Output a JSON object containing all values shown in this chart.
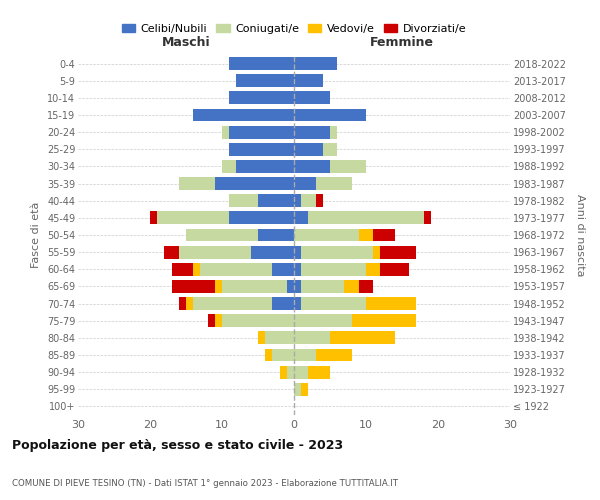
{
  "age_groups": [
    "100+",
    "95-99",
    "90-94",
    "85-89",
    "80-84",
    "75-79",
    "70-74",
    "65-69",
    "60-64",
    "55-59",
    "50-54",
    "45-49",
    "40-44",
    "35-39",
    "30-34",
    "25-29",
    "20-24",
    "15-19",
    "10-14",
    "5-9",
    "0-4"
  ],
  "birth_years": [
    "≤ 1922",
    "1923-1927",
    "1928-1932",
    "1933-1937",
    "1938-1942",
    "1943-1947",
    "1948-1952",
    "1953-1957",
    "1958-1962",
    "1963-1967",
    "1968-1972",
    "1973-1977",
    "1978-1982",
    "1983-1987",
    "1988-1992",
    "1993-1997",
    "1998-2002",
    "2003-2007",
    "2008-2012",
    "2013-2017",
    "2018-2022"
  ],
  "males": {
    "celibi": [
      0,
      0,
      0,
      0,
      0,
      0,
      3,
      1,
      3,
      6,
      5,
      9,
      5,
      11,
      8,
      9,
      9,
      14,
      9,
      8,
      9
    ],
    "coniugati": [
      0,
      0,
      1,
      3,
      4,
      10,
      11,
      9,
      10,
      10,
      10,
      10,
      4,
      5,
      2,
      0,
      1,
      0,
      0,
      0,
      0
    ],
    "vedovi": [
      0,
      0,
      1,
      1,
      1,
      1,
      1,
      1,
      1,
      0,
      0,
      0,
      0,
      0,
      0,
      0,
      0,
      0,
      0,
      0,
      0
    ],
    "divorziati": [
      0,
      0,
      0,
      0,
      0,
      1,
      1,
      6,
      3,
      2,
      0,
      1,
      0,
      0,
      0,
      0,
      0,
      0,
      0,
      0,
      0
    ]
  },
  "females": {
    "nubili": [
      0,
      0,
      0,
      0,
      0,
      0,
      1,
      1,
      1,
      1,
      0,
      2,
      1,
      3,
      5,
      4,
      5,
      10,
      5,
      4,
      6
    ],
    "coniugate": [
      0,
      1,
      2,
      3,
      5,
      8,
      9,
      6,
      9,
      10,
      9,
      16,
      2,
      5,
      5,
      2,
      1,
      0,
      0,
      0,
      0
    ],
    "vedove": [
      0,
      1,
      3,
      5,
      9,
      9,
      7,
      2,
      2,
      1,
      2,
      0,
      0,
      0,
      0,
      0,
      0,
      0,
      0,
      0,
      0
    ],
    "divorziate": [
      0,
      0,
      0,
      0,
      0,
      0,
      0,
      2,
      4,
      5,
      3,
      1,
      1,
      0,
      0,
      0,
      0,
      0,
      0,
      0,
      0
    ]
  },
  "colors": {
    "celibi": "#4472c4",
    "coniugati": "#c5d9a0",
    "vedovi": "#ffc000",
    "divorziati": "#cc0000"
  },
  "xlim": 30,
  "title": "Popolazione per età, sesso e stato civile - 2023",
  "subtitle": "COMUNE DI PIEVE TESINO (TN) - Dati ISTAT 1° gennaio 2023 - Elaborazione TUTTITALIA.IT",
  "ylabel_left": "Fasce di età",
  "ylabel_right": "Anni di nascita",
  "xlabel_left": "Maschi",
  "xlabel_right": "Femmine",
  "legend_labels": [
    "Celibi/Nubili",
    "Coniugati/e",
    "Vedovi/e",
    "Divorziati/e"
  ],
  "bg_color": "#ffffff",
  "grid_color": "#cccccc"
}
